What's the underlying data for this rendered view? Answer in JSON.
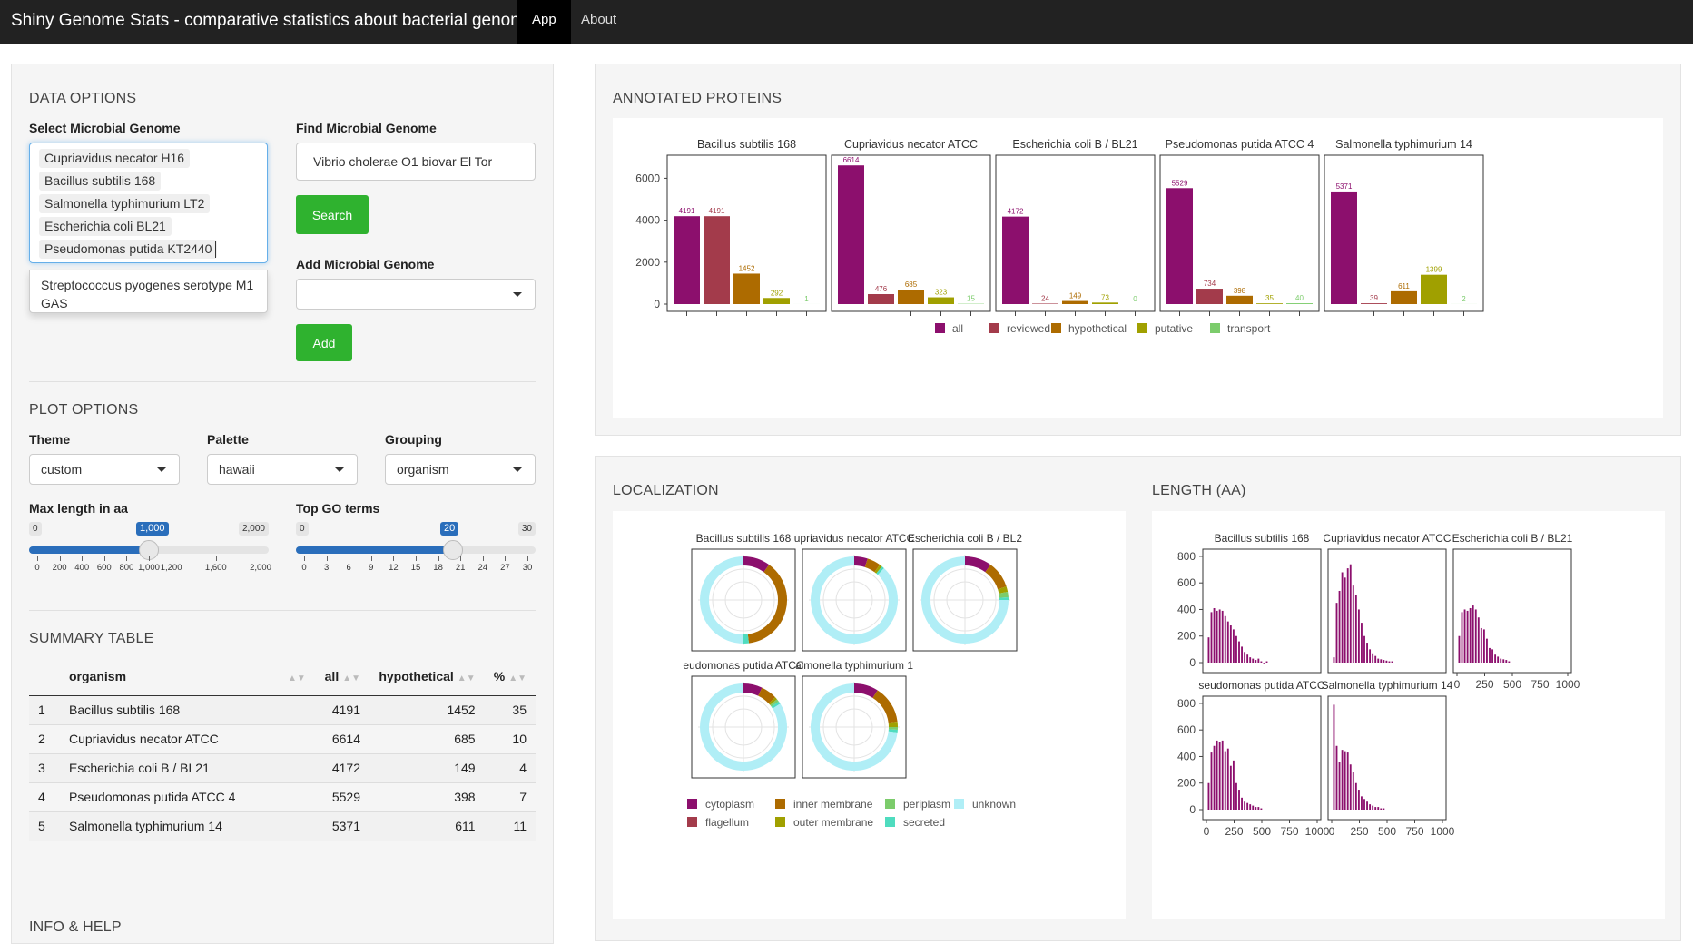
{
  "navbar": {
    "brand": "Shiny Genome Stats - comparative statistics about bacterial genomes",
    "tabs": [
      "App",
      "About"
    ]
  },
  "sidebar": {
    "data_options_title": "DATA OPTIONS",
    "select_label": "Select Microbial Genome",
    "selected_genomes": [
      "Cupriavidus necator H16",
      "Bacillus subtilis 168",
      "Salmonella typhimurium LT2",
      "Escherichia coli BL21",
      "Pseudomonas putida KT2440"
    ],
    "dropdown_option": "Streptococcus pyogenes serotype M1 GAS",
    "find_label": "Find Microbial Genome",
    "find_value": "Vibrio cholerae O1 biovar El Tor",
    "search_button": "Search",
    "add_label": "Add Microbial Genome",
    "add_value": "",
    "add_button": "Add",
    "plot_options_title": "PLOT OPTIONS",
    "theme_label": "Theme",
    "theme_value": "custom",
    "palette_label": "Palette",
    "palette_value": "hawaii",
    "grouping_label": "Grouping",
    "grouping_value": "organism",
    "maxlen": {
      "label": "Max length in aa",
      "min_label": "0",
      "max_label": "2,000",
      "value_label": "1,000",
      "min": 0,
      "max": 2000,
      "value": 1000,
      "ticks": [
        0,
        200,
        400,
        600,
        800,
        1000,
        1200,
        1600,
        2000
      ],
      "tick_labels": [
        "0",
        "200",
        "400",
        "600",
        "800",
        "1,000",
        "1,200",
        "1,600",
        "2,000"
      ]
    },
    "topgo": {
      "label": "Top GO terms",
      "min_label": "0",
      "max_label": "30",
      "value_label": "20",
      "min": 0,
      "max": 30,
      "value": 20,
      "ticks": [
        0,
        3,
        6,
        9,
        12,
        15,
        18,
        21,
        24,
        27,
        30
      ],
      "tick_labels": [
        "0",
        "3",
        "6",
        "9",
        "12",
        "15",
        "18",
        "21",
        "24",
        "27",
        "30"
      ]
    },
    "summary_title": "SUMMARY TABLE",
    "table": {
      "headers": [
        "",
        "organism",
        "all",
        "hypothetical",
        "%"
      ],
      "rows": [
        [
          "1",
          "Bacillus subtilis 168",
          "4191",
          "1452",
          "35"
        ],
        [
          "2",
          "Cupriavidus necator ATCC",
          "6614",
          "685",
          "10"
        ],
        [
          "3",
          "Escherichia coli B / BL21",
          "4172",
          "149",
          "4"
        ],
        [
          "4",
          "Pseudomonas putida ATCC 4",
          "5529",
          "398",
          "7"
        ],
        [
          "5",
          "Salmonella typhimurium 14",
          "5371",
          "611",
          "11"
        ]
      ]
    },
    "info_title": "INFO & HELP"
  },
  "colors": {
    "all": "#8c0f6d",
    "reviewed": "#a33b4b",
    "hypothetical": "#ad6b00",
    "putative": "#a0a000",
    "transport": "#7ccc6c",
    "cytoplasm": "#8c0f6d",
    "flagellum": "#a33b4b",
    "inner_membrane": "#ad6b00",
    "outer_membrane": "#a0a000",
    "periplasm": "#7ccc6c",
    "secreted": "#4fdcbf",
    "unknown": "#b0eef6",
    "button": "#2fb22f",
    "slider": "#2a6ebb"
  },
  "proteins_title": "ANNOTATED PROTEINS",
  "localization_title": "LOCALIZATION",
  "length_title": "LENGTH (AA)",
  "chart_data": [
    {
      "type": "bar",
      "title": "ANNOTATED PROTEINS",
      "facets": [
        "Bacillus subtilis 168",
        "Cupriavidus necator ATCC",
        "Escherichia coli B / BL21",
        "Pseudomonas putida ATCC 4",
        "Salmonella typhimurium 14"
      ],
      "categories": [
        "all",
        "reviewed",
        "hypothetical",
        "putative",
        "transport"
      ],
      "series": [
        {
          "name": "Bacillus subtilis 168",
          "values": [
            4191,
            4191,
            1452,
            292,
            1
          ]
        },
        {
          "name": "Cupriavidus necator ATCC",
          "values": [
            6614,
            476,
            685,
            323,
            15
          ]
        },
        {
          "name": "Escherichia coli B / BL21",
          "values": [
            4172,
            24,
            149,
            73,
            0
          ]
        },
        {
          "name": "Pseudomonas putida ATCC 4",
          "values": [
            5529,
            734,
            398,
            35,
            40
          ]
        },
        {
          "name": "Salmonella typhimurium 14",
          "values": [
            5371,
            39,
            611,
            1399,
            2
          ]
        }
      ],
      "ylim": [
        0,
        7100
      ],
      "yticks": [
        0,
        2000,
        4000,
        6000
      ],
      "legend": [
        "all",
        "reviewed",
        "hypothetical",
        "putative",
        "transport"
      ]
    },
    {
      "type": "pie",
      "title": "LOCALIZATION",
      "facets": [
        "Bacillus subtilis 168",
        "upriavidus necator ATCC",
        "Escherichia coli B / BL2",
        "eudomonas putida ATCC",
        "almonella typhimurium 1"
      ],
      "categories": [
        "cytoplasm",
        "flagellum",
        "inner membrane",
        "outer membrane",
        "periplasm",
        "secreted",
        "unknown"
      ],
      "series": [
        {
          "name": "Bacillus subtilis 168",
          "values": [
            10,
            0,
            38,
            0,
            0,
            2,
            50
          ]
        },
        {
          "name": "Cupriavidus necator ATCC",
          "values": [
            5,
            0,
            5,
            1,
            0,
            1,
            88
          ]
        },
        {
          "name": "Escherichia coli B / BL21",
          "values": [
            10,
            0,
            10,
            2,
            2,
            1,
            75
          ]
        },
        {
          "name": "Pseudomonas putida ATCC 4",
          "values": [
            7,
            0,
            6,
            1,
            1,
            1,
            84
          ]
        },
        {
          "name": "Salmonella typhimurium 14",
          "values": [
            9,
            0,
            14,
            2,
            1,
            1,
            73
          ]
        }
      ],
      "legend": [
        "cytoplasm",
        "inner membrane",
        "periplasm",
        "unknown",
        "flagellum",
        "outer membrane",
        "secreted"
      ]
    },
    {
      "type": "bar",
      "title": "LENGTH (AA)",
      "facets": [
        "Bacillus subtilis 168",
        "Cupriavidus necator ATCC",
        "Escherichia coli B / BL21",
        "seudomonas putida ATCC",
        "Salmonella typhimurium 14"
      ],
      "bin_width": 25,
      "x_start": 25,
      "xlim": [
        0,
        1000
      ],
      "xticks": [
        0,
        250,
        500,
        750,
        1000
      ],
      "ylim": [
        0,
        820
      ],
      "yticks": [
        0,
        200,
        400,
        600,
        800
      ],
      "series": [
        {
          "name": "Bacillus subtilis 168",
          "values": [
            190,
            380,
            410,
            390,
            400,
            390,
            350,
            310,
            280,
            250,
            200,
            160,
            120,
            80,
            60,
            40,
            30,
            20,
            30,
            10,
            0,
            10
          ]
        },
        {
          "name": "Cupriavidus necator ATCC",
          "values": [
            40,
            450,
            540,
            680,
            640,
            710,
            740,
            580,
            510,
            400,
            300,
            200,
            150,
            100,
            70,
            50,
            30,
            25,
            20,
            15,
            10,
            10
          ]
        },
        {
          "name": "Escherichia coli B / BL21",
          "values": [
            200,
            380,
            400,
            390,
            410,
            430,
            400,
            340,
            260,
            250,
            180,
            110,
            100,
            60,
            45,
            30,
            25,
            20,
            10
          ]
        },
        {
          "name": "Pseudomonas putida ATCC 4",
          "values": [
            200,
            430,
            480,
            520,
            510,
            520,
            440,
            460,
            330,
            370,
            200,
            150,
            90,
            60,
            50,
            40,
            30,
            20,
            20,
            10
          ]
        },
        {
          "name": "Salmonella typhimurium 14",
          "values": [
            790,
            480,
            360,
            450,
            440,
            430,
            340,
            280,
            200,
            150,
            100,
            80,
            60,
            40,
            30,
            20,
            20,
            10,
            10
          ]
        }
      ]
    }
  ]
}
